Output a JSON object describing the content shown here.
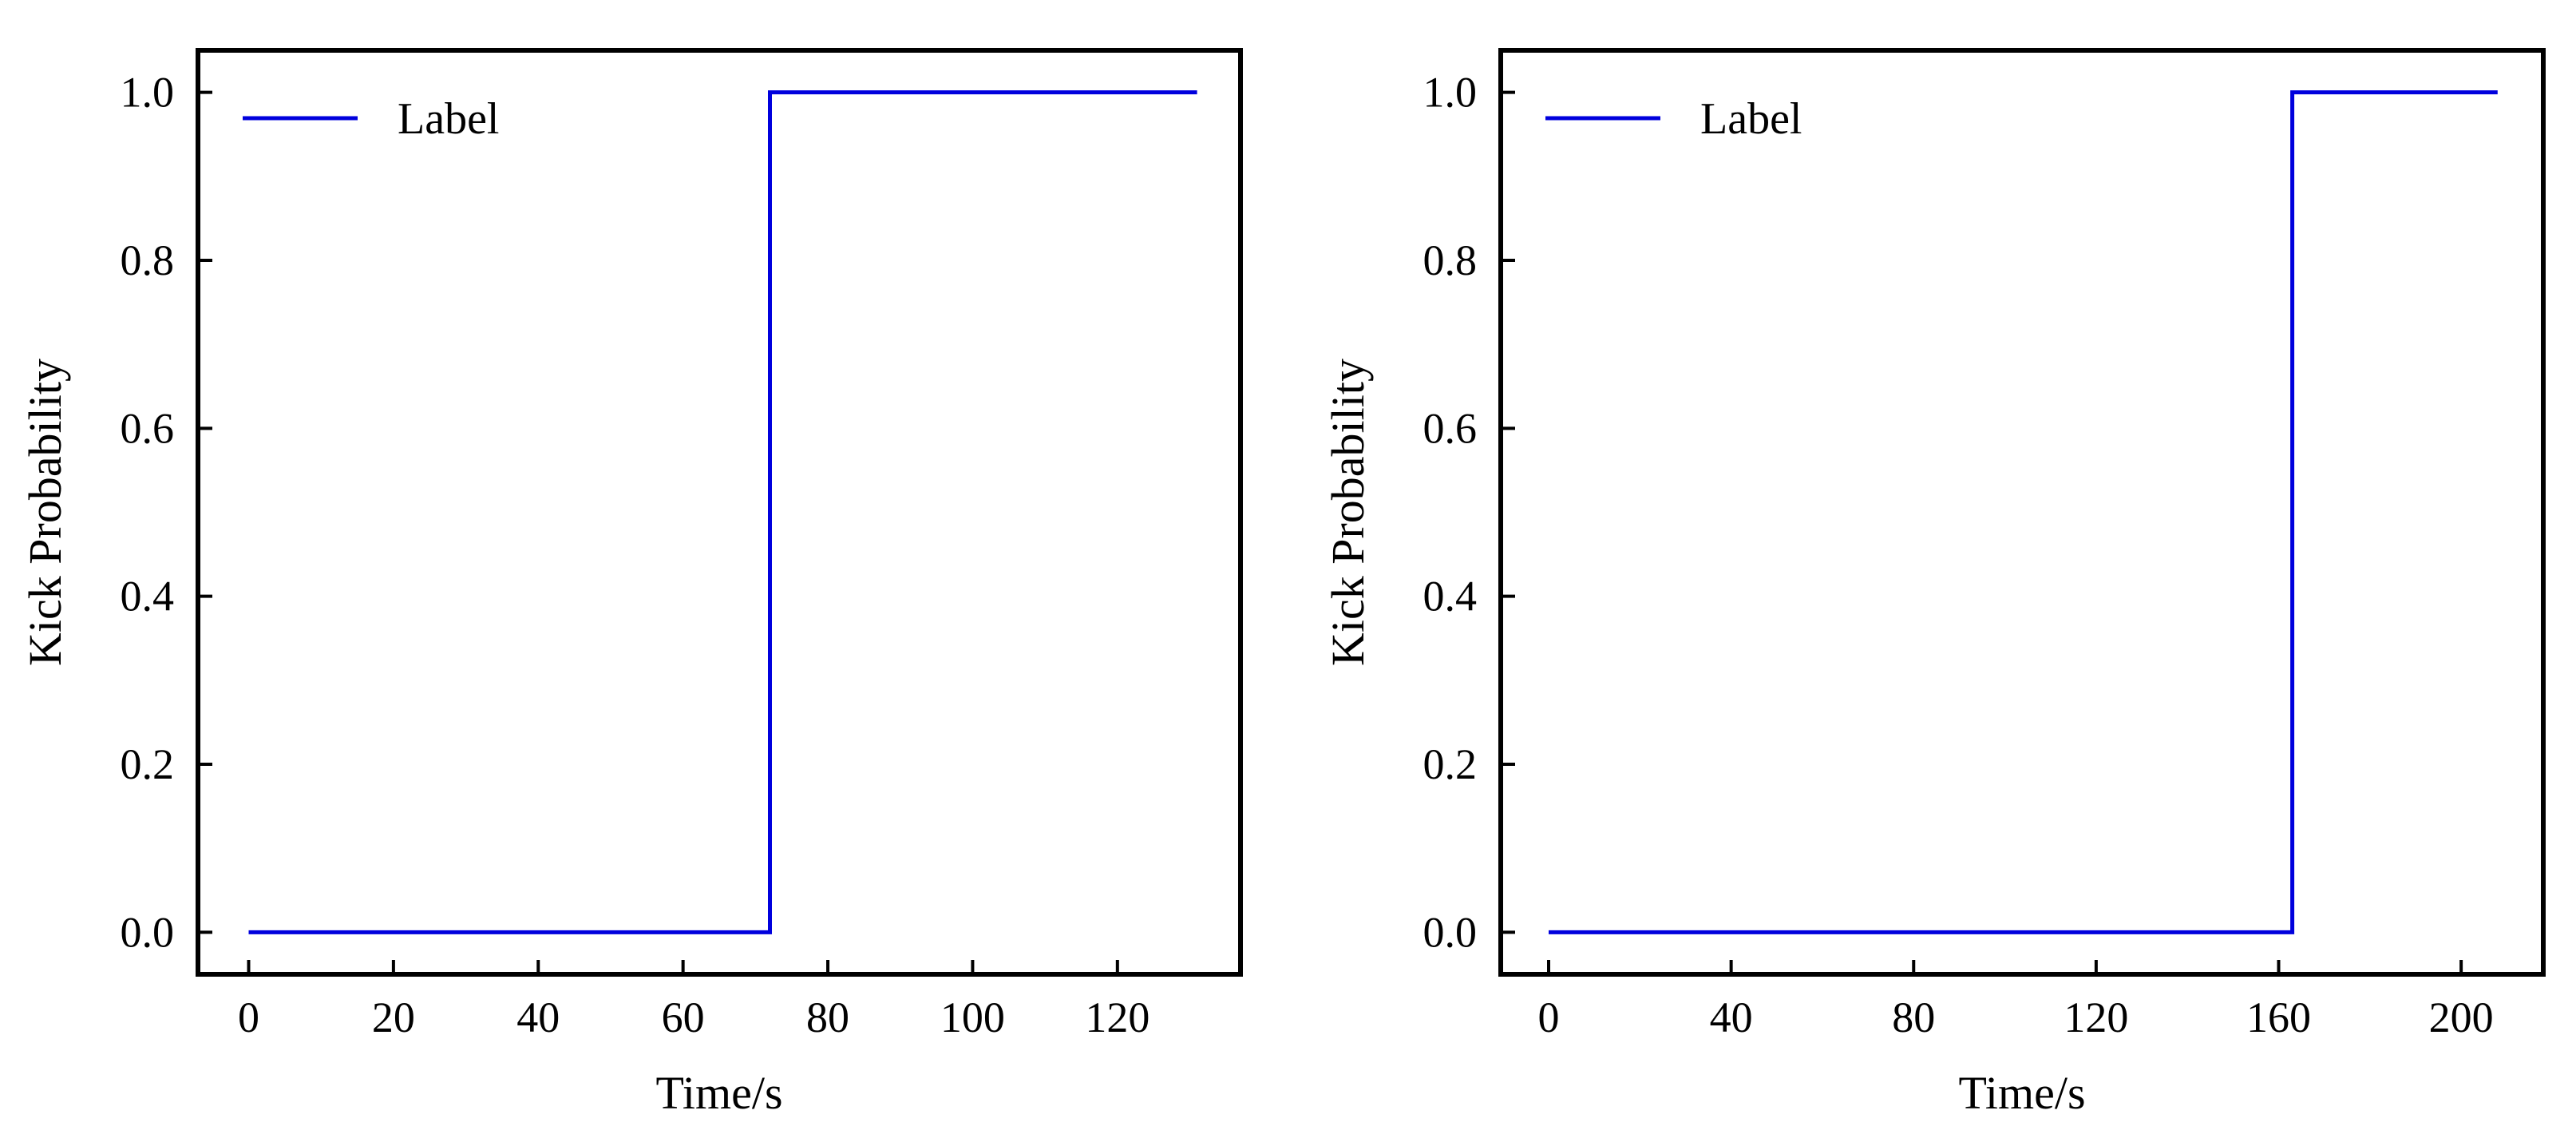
{
  "chart_data": [
    {
      "type": "line",
      "xlabel": "Time/s",
      "ylabel": "Kick Probability",
      "xlim": [
        -7,
        137
      ],
      "ylim": [
        -0.05,
        1.05
      ],
      "xticks": [
        0,
        20,
        40,
        60,
        80,
        100,
        120
      ],
      "yticks": [
        0.0,
        0.2,
        0.4,
        0.6,
        0.8,
        1.0
      ],
      "xtick_labels": [
        "0",
        "20",
        "40",
        "60",
        "80",
        "100",
        "120"
      ],
      "ytick_labels": [
        "0.0",
        "0.2",
        "0.4",
        "0.6",
        "0.8",
        "1.0"
      ],
      "grid": false,
      "legend_position": "top-left",
      "series": [
        {
          "name": "Label",
          "color": "#0000dd",
          "x": [
            0,
            72,
            72,
            131
          ],
          "y": [
            0,
            0,
            1,
            1
          ]
        }
      ]
    },
    {
      "type": "line",
      "xlabel": "Time/s",
      "ylabel": "Kick Probability",
      "xlim": [
        -10.5,
        218
      ],
      "ylim": [
        -0.05,
        1.05
      ],
      "xticks": [
        0,
        40,
        80,
        120,
        160,
        200
      ],
      "yticks": [
        0.0,
        0.2,
        0.4,
        0.6,
        0.8,
        1.0
      ],
      "xtick_labels": [
        "0",
        "40",
        "80",
        "120",
        "160",
        "200"
      ],
      "ytick_labels": [
        "0.0",
        "0.2",
        "0.4",
        "0.6",
        "0.8",
        "1.0"
      ],
      "grid": false,
      "legend_position": "top-left",
      "series": [
        {
          "name": "Label",
          "color": "#0000dd",
          "x": [
            0,
            163,
            163,
            208
          ],
          "y": [
            0,
            0,
            1,
            1
          ]
        }
      ]
    }
  ]
}
